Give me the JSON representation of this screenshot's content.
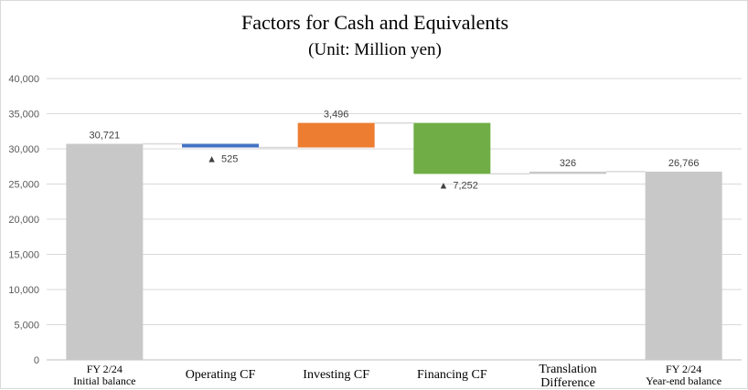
{
  "chart_data": {
    "type": "bar",
    "subtype": "waterfall",
    "title": "Factors for Cash and Equivalents",
    "subtitle": "(Unit: Million yen)",
    "xlabel": "",
    "ylabel": "",
    "ylim": [
      0,
      40000
    ],
    "yticks": [
      0,
      5000,
      10000,
      15000,
      20000,
      25000,
      30000,
      35000,
      40000
    ],
    "ytick_labels": [
      "0",
      "5,000",
      "10,000",
      "15,000",
      "20,000",
      "25,000",
      "30,000",
      "35,000",
      "40,000"
    ],
    "grid": true,
    "legend": "none",
    "categories": [
      {
        "lines": [
          "FY 2/24",
          "Initial balance"
        ],
        "kind": "total",
        "value": 30721,
        "label": "30,721",
        "color": "#c9c8c9"
      },
      {
        "lines": [
          "Operating CF"
        ],
        "kind": "decrease",
        "value": 525,
        "label": "525",
        "marker": "▲",
        "color": "#4472c4"
      },
      {
        "lines": [
          "Investing CF"
        ],
        "kind": "increase",
        "value": 3496,
        "label": "3,496",
        "color": "#ed7d31"
      },
      {
        "lines": [
          "Financing CF"
        ],
        "kind": "decrease",
        "value": 7252,
        "label": "7,252",
        "marker": "▲",
        "color": "#70ad47"
      },
      {
        "lines": [
          "Translation",
          "Difference"
        ],
        "kind": "increase",
        "value": 326,
        "label": "326",
        "color": "#c9c8c9"
      },
      {
        "lines": [
          "FY 2/24",
          "Year-end balance"
        ],
        "kind": "total",
        "value": 26766,
        "label": "26,766",
        "color": "#c9c8c9"
      }
    ],
    "colors": {
      "grid": "#d9d9d9",
      "connector": "#d9d9d9",
      "axis": "#bfbfbf"
    }
  }
}
